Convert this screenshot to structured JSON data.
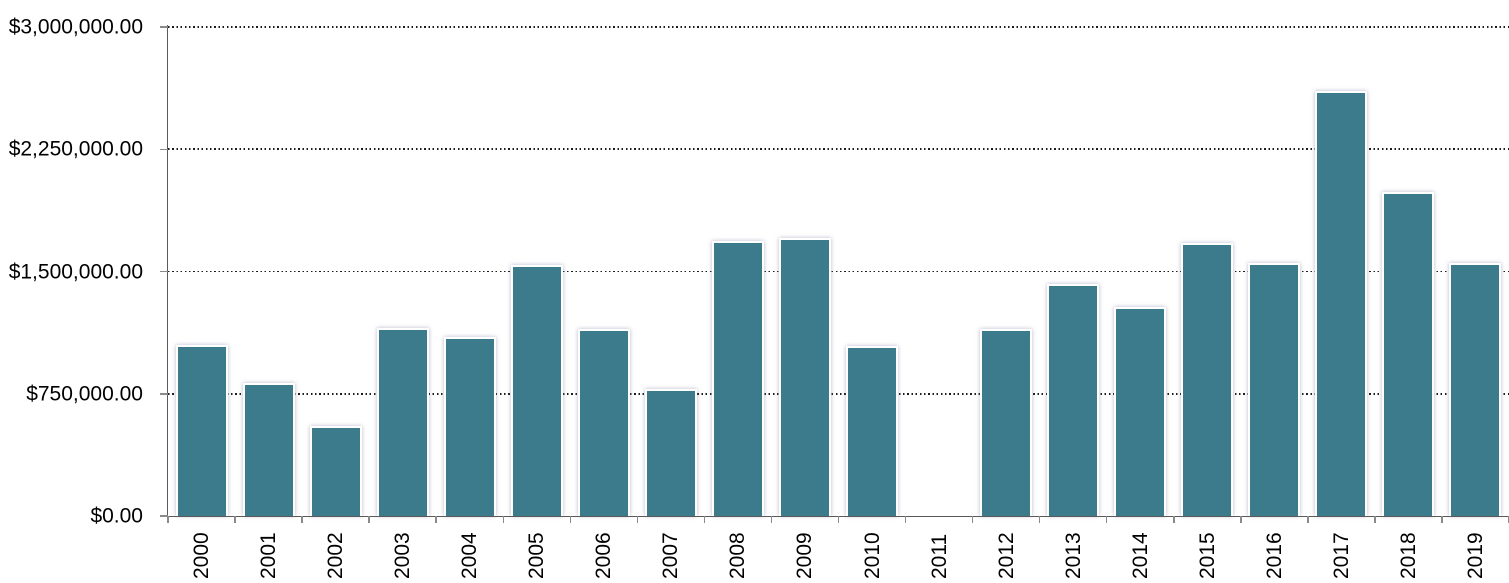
{
  "chart_data": {
    "type": "bar",
    "title": "",
    "xlabel": "",
    "ylabel": "",
    "categories": [
      "2000",
      "2001",
      "2002",
      "2003",
      "2004",
      "2005",
      "2006",
      "2007",
      "2008",
      "2009",
      "2010",
      "2011",
      "2012",
      "2013",
      "2014",
      "2015",
      "2016",
      "2017",
      "2018",
      "2019"
    ],
    "values": [
      1050000,
      815000,
      550000,
      1155000,
      1100000,
      1540000,
      1145000,
      780000,
      1690000,
      1705000,
      1040000,
      0,
      1145000,
      1425000,
      1285000,
      1675000,
      1555000,
      2610000,
      1990000,
      1555000
    ],
    "ylim": [
      0,
      3000000
    ],
    "y_ticks": [
      {
        "value": 3000000,
        "label": "$3,000,000.00"
      },
      {
        "value": 2250000,
        "label": "$2,250,000.00"
      },
      {
        "value": 1500000,
        "label": "$1,500,000.00"
      },
      {
        "value": 750000,
        "label": "$750,000.00"
      },
      {
        "value": 0,
        "label": "$0.00"
      }
    ],
    "grid": {
      "horizontal": true,
      "vertical": false,
      "style": "dotted"
    },
    "legend": {
      "visible": false
    },
    "x_label_rotation_deg": -90,
    "colors": {
      "bar_fill": "#3C7B8B",
      "bar_border": "#FFFFFF",
      "axis_line": "#5A5A5A",
      "tick": "#8A8A8A",
      "gridline": "#1C1C1C",
      "label_text": "#000000",
      "background": "#FFFFFF"
    }
  }
}
